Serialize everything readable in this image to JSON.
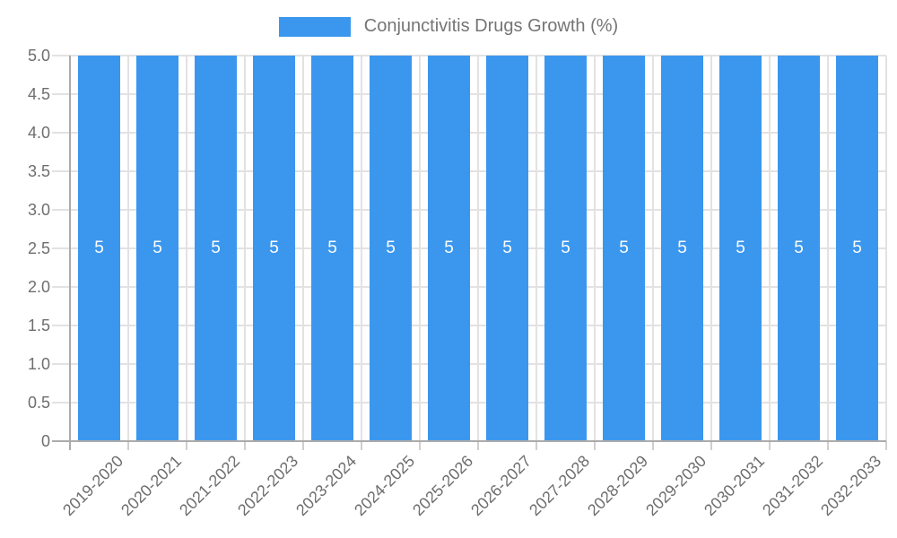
{
  "chart_data": {
    "type": "bar",
    "legend_label": "Conjunctivitis Drugs Growth (%)",
    "legend_position": "top",
    "categories": [
      "2019-2020",
      "2020-2021",
      "2021-2022",
      "2022-2023",
      "2023-2024",
      "2024-2025",
      "2025-2026",
      "2026-2027",
      "2027-2028",
      "2028-2029",
      "2029-2030",
      "2030-2031",
      "2031-2032",
      "2032-2033"
    ],
    "values": [
      5,
      5,
      5,
      5,
      5,
      5,
      5,
      5,
      5,
      5,
      5,
      5,
      5,
      5
    ],
    "value_labels": [
      "5",
      "5",
      "5",
      "5",
      "5",
      "5",
      "5",
      "5",
      "5",
      "5",
      "5",
      "5",
      "5",
      "5"
    ],
    "yticks": [
      "0",
      "0.5",
      "1.0",
      "1.5",
      "2.0",
      "2.5",
      "3.0",
      "3.5",
      "4.0",
      "4.5",
      "5.0"
    ],
    "ylim": [
      0,
      5
    ],
    "xlabel": "",
    "ylabel": "",
    "grid": true,
    "colors": {
      "bar": "#3B97EE",
      "bar_value_label": "#FFFFFF",
      "axis_text": "#6E6E6E",
      "legend_text": "#757575",
      "gridline": "#E2E2E2",
      "tick": "#CFCFCF",
      "axis_line": "#ABABAB"
    }
  }
}
